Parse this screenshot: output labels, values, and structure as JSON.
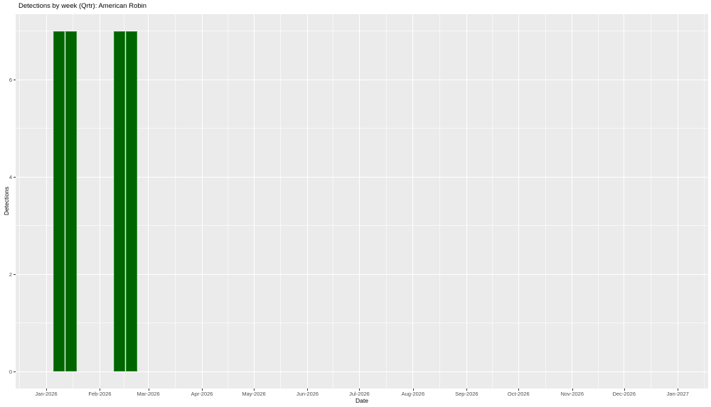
{
  "chart_data": {
    "type": "bar",
    "title": "Detections by week (Qrtr): American Robin",
    "xlabel": "Date",
    "ylabel": "Detections",
    "legend": "none",
    "grid": true,
    "x_domain_days": [
      -17.7,
      382.6
    ],
    "ylim": [
      -0.35,
      7.35
    ],
    "x_ticks": [
      {
        "label": "Jan-2026",
        "day": 0
      },
      {
        "label": "Feb-2026",
        "day": 31
      },
      {
        "label": "Mar-2026",
        "day": 59
      },
      {
        "label": "Apr-2026",
        "day": 90
      },
      {
        "label": "May-2026",
        "day": 120
      },
      {
        "label": "Jun-2026",
        "day": 151
      },
      {
        "label": "Jul-2026",
        "day": 181
      },
      {
        "label": "Aug-2026",
        "day": 212
      },
      {
        "label": "Sep-2026",
        "day": 243
      },
      {
        "label": "Oct-2026",
        "day": 273
      },
      {
        "label": "Nov-2026",
        "day": 304
      },
      {
        "label": "Dec-2026",
        "day": 334
      },
      {
        "label": "Jan-2027",
        "day": 365
      }
    ],
    "x_minor_days": [
      -15.5,
      15.5,
      45,
      74.5,
      105,
      135.5,
      166,
      196.5,
      227.5,
      258,
      288.5,
      319,
      349.5,
      380.5
    ],
    "y_ticks": [
      0,
      2,
      4,
      6
    ],
    "y_minor_ticks": [
      1,
      3,
      5,
      7
    ],
    "bar_width_days": 7,
    "bars": [
      {
        "week_start": "2026-01-05",
        "day_offset": 4,
        "detections": 7
      },
      {
        "week_start": "2026-01-12",
        "day_offset": 11,
        "detections": 7
      },
      {
        "week_start": "2026-02-09",
        "day_offset": 39,
        "detections": 7
      },
      {
        "week_start": "2026-02-16",
        "day_offset": 46,
        "detections": 7
      }
    ],
    "colors": {
      "bar_fill": "#006400",
      "bar_stroke": "#2e8b2e",
      "panel_background": "#ebebeb",
      "grid_major": "#ffffff",
      "grid_minor": "rgba(255,255,255,0.6)",
      "tick_mark": "#333333",
      "tick_label": "#4d4d4d",
      "text": "#000000",
      "page_background": "#ffffff"
    }
  }
}
